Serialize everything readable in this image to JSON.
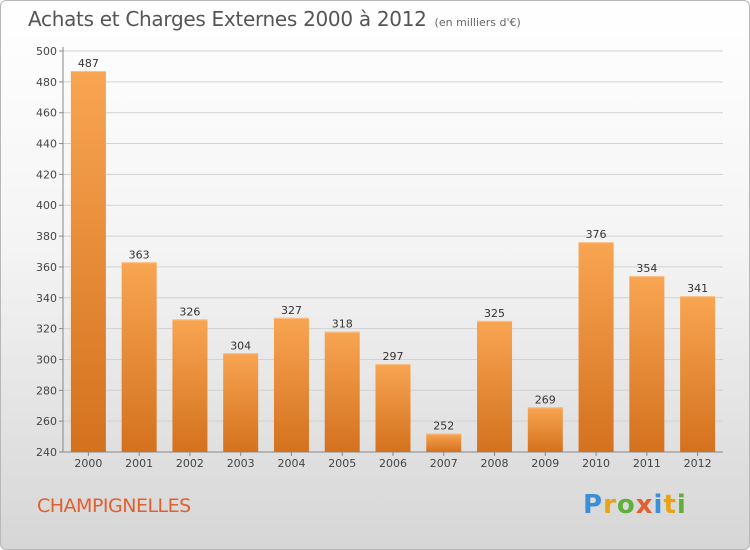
{
  "title": "Achats et Charges Externes 2000 à 2012",
  "subtitle": "(en milliers d'€)",
  "commune": "CHAMPIGNELLES",
  "logo": {
    "letters": [
      "P",
      "r",
      "o",
      "x",
      "i",
      "t",
      "i"
    ],
    "colors": [
      "#3a8fd8",
      "#e8a317",
      "#5fb03a",
      "#e0602f",
      "#3a8fd8",
      "#e8a317",
      "#5fb03a"
    ]
  },
  "colors": {
    "bar_top": "#f8a552",
    "bar_bottom": "#d4711e",
    "title": "#555555",
    "commune": "#e0602f"
  },
  "chart_data": {
    "type": "bar",
    "title": "Achats et Charges Externes 2000 à 2012",
    "subtitle": "(en milliers d'€)",
    "xlabel": "",
    "ylabel": "",
    "categories": [
      "2000",
      "2001",
      "2002",
      "2003",
      "2004",
      "2005",
      "2006",
      "2007",
      "2008",
      "2009",
      "2010",
      "2011",
      "2012"
    ],
    "values": [
      487,
      363,
      326,
      304,
      327,
      318,
      297,
      252,
      325,
      269,
      376,
      354,
      341
    ],
    "value_labels": [
      "487",
      "363",
      "326",
      "304",
      "327",
      "318",
      "297",
      "252",
      "325",
      "269",
      "376",
      "354",
      "341"
    ],
    "ylim": [
      240,
      500
    ],
    "yticks": [
      240,
      260,
      280,
      300,
      320,
      340,
      360,
      380,
      400,
      420,
      440,
      460,
      480,
      500
    ],
    "grid": true,
    "legend": "none"
  }
}
